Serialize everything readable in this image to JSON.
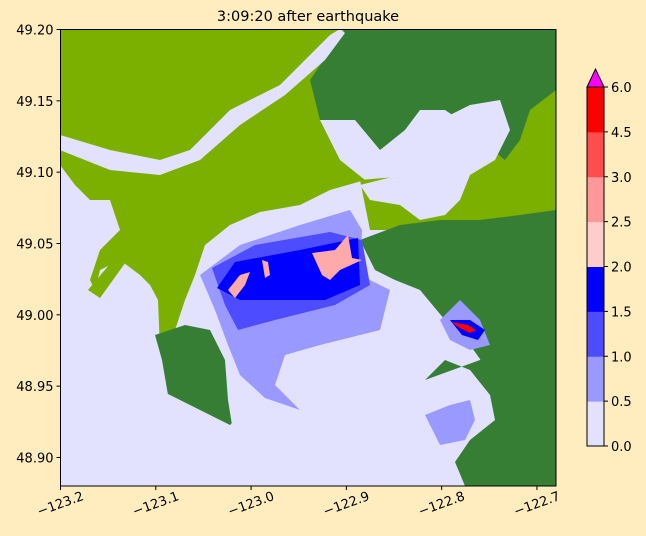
{
  "title": "3:09:20 after earthquake",
  "map": {
    "x_ticks": [
      "−123.2",
      "−123.1",
      "−123.0",
      "−122.9",
      "−122.8",
      "−122.7"
    ],
    "x_tick_values": [
      -123.2,
      -123.1,
      -123.0,
      -122.9,
      -122.8,
      -122.7
    ],
    "y_ticks": [
      "49.20",
      "49.15",
      "49.10",
      "49.05",
      "49.00",
      "48.95",
      "48.90"
    ],
    "y_tick_values": [
      49.2,
      49.15,
      49.1,
      49.05,
      49.0,
      48.95,
      48.9
    ],
    "xlim": [
      -123.2,
      -122.68
    ],
    "ylim": [
      48.88,
      49.2
    ],
    "colors": {
      "background": "#ffedc0",
      "water": "#e2e2ff",
      "land_low": "#7bb000",
      "land_high": "#367e34"
    }
  },
  "colorbar": {
    "ticks": [
      "0.0",
      "0.5",
      "1.0",
      "1.5",
      "2.0",
      "2.5",
      "3.0",
      "4.5",
      "6.0"
    ],
    "levels": [
      0.0,
      0.5,
      1.0,
      1.5,
      2.0,
      2.5,
      3.0,
      4.5,
      6.0
    ],
    "colors": [
      "#e2e2ff",
      "#9999ff",
      "#4d4dff",
      "#0000ff",
      "#ffcccc",
      "#ff9999",
      "#ff4d4d",
      "#ff0000"
    ],
    "over_color": "#ff00ff",
    "extend": "max"
  }
}
